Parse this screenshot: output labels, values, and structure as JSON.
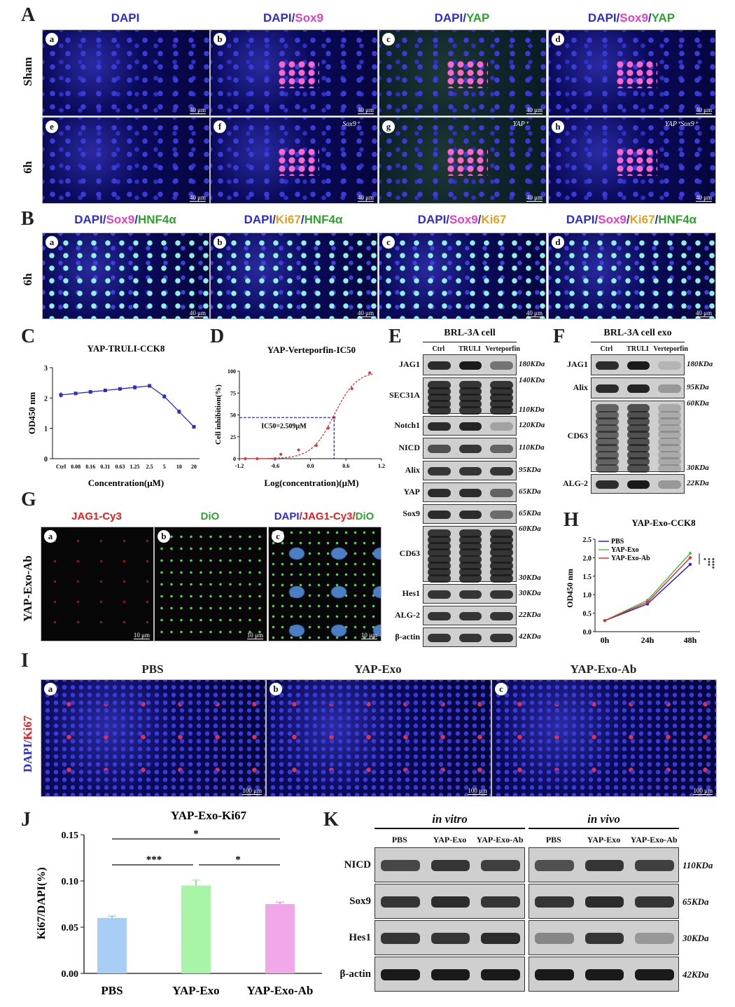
{
  "panels": {
    "A": "A",
    "B": "B",
    "C": "C",
    "D": "D",
    "E": "E",
    "F": "F",
    "G": "G",
    "H": "H",
    "I": "I",
    "J": "J",
    "K": "K"
  },
  "A": {
    "cols": [
      {
        "parts": [
          {
            "t": "DAPI",
            "c": "#2c2cd0"
          }
        ]
      },
      {
        "parts": [
          {
            "t": "DAPI",
            "c": "#2c2cd0"
          },
          {
            "t": "/",
            "c": "#2c2cd0"
          },
          {
            "t": "Sox9",
            "c": "#e040c0"
          }
        ]
      },
      {
        "parts": [
          {
            "t": "DAPI",
            "c": "#2c2cd0"
          },
          {
            "t": "/",
            "c": "#2c2cd0"
          },
          {
            "t": "YAP",
            "c": "#30a030"
          }
        ]
      },
      {
        "parts": [
          {
            "t": "DAPI",
            "c": "#2c2cd0"
          },
          {
            "t": "/",
            "c": "#2c2cd0"
          },
          {
            "t": "Sox9",
            "c": "#e040c0"
          },
          {
            "t": "/",
            "c": "#2c2cd0"
          },
          {
            "t": "YAP",
            "c": "#30a030"
          }
        ]
      }
    ],
    "rows": [
      "Sham",
      "6h"
    ],
    "letters": [
      [
        "a",
        "b",
        "c",
        "d"
      ],
      [
        "e",
        "f",
        "g",
        "h"
      ]
    ],
    "scale": "40 μm",
    "annotations": {
      "f": "Sox9⁺",
      "g": "YAP⁺",
      "h": "YAP⁺Sox9⁺"
    }
  },
  "B": {
    "cols": [
      {
        "parts": [
          {
            "t": "DAPI",
            "c": "#2c2cd0"
          },
          {
            "t": "/",
            "c": "#2c2cd0"
          },
          {
            "t": "Sox9",
            "c": "#e040c0"
          },
          {
            "t": "/",
            "c": "#2c2cd0"
          },
          {
            "t": "HNF4α",
            "c": "#30a030"
          }
        ]
      },
      {
        "parts": [
          {
            "t": "DAPI",
            "c": "#2c2cd0"
          },
          {
            "t": "/",
            "c": "#2c2cd0"
          },
          {
            "t": "Ki67",
            "c": "#e0a020"
          },
          {
            "t": "/",
            "c": "#2c2cd0"
          },
          {
            "t": "HNF4α",
            "c": "#30a030"
          }
        ]
      },
      {
        "parts": [
          {
            "t": "DAPI",
            "c": "#2c2cd0"
          },
          {
            "t": "/",
            "c": "#2c2cd0"
          },
          {
            "t": "Sox9",
            "c": "#e040c0"
          },
          {
            "t": "/",
            "c": "#2c2cd0"
          },
          {
            "t": "Ki67",
            "c": "#e0a020"
          }
        ]
      },
      {
        "parts": [
          {
            "t": "DAPI",
            "c": "#2c2cd0"
          },
          {
            "t": "/",
            "c": "#2c2cd0"
          },
          {
            "t": "Sox9",
            "c": "#e040c0"
          },
          {
            "t": "/",
            "c": "#2c2cd0"
          },
          {
            "t": "Ki67",
            "c": "#e0a020"
          },
          {
            "t": "/",
            "c": "#2c2cd0"
          },
          {
            "t": "HNF4α",
            "c": "#30a030"
          }
        ]
      }
    ],
    "row": "6h",
    "letters": [
      "a",
      "b",
      "c",
      "d"
    ],
    "scale": "40 μm"
  },
  "chart_data": [
    {
      "id": "C",
      "type": "line",
      "title": "YAP-TRULI-CCK8",
      "xlabel": "Concentration(μM)",
      "ylabel": "OD450 nm",
      "categories": [
        "Ctrl",
        "0.08",
        "0.16",
        "0.31",
        "0.63",
        "1.25",
        "2.5",
        "5",
        "10",
        "20"
      ],
      "values": [
        2.1,
        2.15,
        2.2,
        2.25,
        2.3,
        2.35,
        2.4,
        2.05,
        1.55,
        1.05
      ],
      "errors": [
        0.08,
        0.05,
        0.06,
        0.05,
        0.05,
        0.07,
        0.06,
        0.07,
        0.07,
        0.03
      ],
      "ylim": [
        0,
        3
      ],
      "yticks": [
        "0",
        "1",
        "2",
        "3"
      ]
    },
    {
      "id": "D",
      "type": "scatter",
      "title": "YAP-Verteporfin-IC50",
      "xlabel": "Log(concentration)(μM)",
      "ylabel": "Cell inhibition(%)",
      "x": [
        -1.1,
        -0.9,
        -0.6,
        -0.5,
        -0.2,
        0.1,
        0.3,
        0.4,
        0.7,
        1.0
      ],
      "y": [
        0,
        0,
        0,
        5,
        10,
        15,
        35,
        47,
        80,
        98
      ],
      "xlim": [
        -1.2,
        1.2
      ],
      "ylim": [
        0,
        100
      ],
      "xticks": [
        "-1.2",
        "-0.6",
        "0.0",
        "0.6",
        "1.2"
      ],
      "yticks": [
        "0",
        "25",
        "50",
        "75",
        "100"
      ],
      "annotation": "IC50=2.509μM",
      "ic50_log": 0.4,
      "ic50_y": 47
    },
    {
      "id": "H",
      "type": "line",
      "title": "YAP-Exo-CCK8",
      "ylabel": "OD450 nm",
      "categories": [
        "0h",
        "24h",
        "48h"
      ],
      "series": [
        {
          "name": "PBS",
          "color": "#2020e0",
          "values": [
            0.3,
            0.75,
            1.82
          ]
        },
        {
          "name": "YAP-Exo",
          "color": "#50c050",
          "values": [
            0.3,
            0.85,
            2.12
          ]
        },
        {
          "name": "YAP-Exo-Ab",
          "color": "#e03030",
          "values": [
            0.3,
            0.8,
            2.0
          ]
        }
      ],
      "ylim": [
        0,
        2.5
      ],
      "yticks": [
        "0.0",
        "0.5",
        "1.0",
        "1.5",
        "2.0",
        "2.5"
      ],
      "sig": [
        "*",
        "***",
        "****"
      ]
    },
    {
      "id": "J",
      "type": "bar",
      "title": "YAP-Exo-Ki67",
      "ylabel": "Ki67/DAPI(%)",
      "categories": [
        "PBS",
        "YAP-Exo",
        "YAP-Exo-Ab"
      ],
      "values": [
        0.06,
        0.095,
        0.075
      ],
      "errors": [
        0.002,
        0.006,
        0.002
      ],
      "colors": [
        "#a8cef5",
        "#a8f5a8",
        "#f0a8e8"
      ],
      "ylim": [
        0,
        0.15
      ],
      "yticks": [
        "0.00",
        "0.05",
        "0.10",
        "0.15"
      ],
      "sig": [
        "*",
        "***",
        "*"
      ]
    }
  ],
  "E": {
    "title": "BRL-3A cell",
    "lanes": [
      "Ctrl",
      "TRULI",
      "Verteporfin"
    ],
    "rows": [
      {
        "label": "JAG1",
        "kda": [
          "180KDa"
        ]
      },
      {
        "label": "SEC31A",
        "kda": [
          "140KDa",
          "110KDa"
        ]
      },
      {
        "label": "Notch1",
        "kda": [
          "120KDa"
        ]
      },
      {
        "label": "NICD",
        "kda": [
          "110KDa"
        ]
      },
      {
        "label": "Alix",
        "kda": [
          "95KDa"
        ]
      },
      {
        "label": "YAP",
        "kda": [
          "65KDa"
        ]
      },
      {
        "label": "Sox9",
        "kda": [
          "65KDa"
        ]
      },
      {
        "label": "CD63",
        "kda": [
          "60KDa",
          "30KDa"
        ]
      },
      {
        "label": "Hes1",
        "kda": [
          "30KDa"
        ]
      },
      {
        "label": "ALG-2",
        "kda": [
          "22KDa"
        ]
      },
      {
        "label": "β-actin",
        "kda": [
          "42KDa"
        ]
      }
    ]
  },
  "F": {
    "title": "BRL-3A cell exo",
    "lanes": [
      "Ctrl",
      "TRULI",
      "Verteporfin"
    ],
    "rows": [
      {
        "label": "JAG1",
        "kda": [
          "180KDa"
        ]
      },
      {
        "label": "Alix",
        "kda": [
          "95KDa"
        ]
      },
      {
        "label": "CD63",
        "kda": [
          "60KDa",
          "30KDa"
        ]
      },
      {
        "label": "ALG-2",
        "kda": [
          "22KDa"
        ]
      }
    ]
  },
  "G": {
    "cols": [
      {
        "parts": [
          {
            "t": "JAG1-Cy3",
            "c": "#e02020"
          }
        ]
      },
      {
        "parts": [
          {
            "t": "DiO",
            "c": "#30a030"
          }
        ]
      },
      {
        "parts": [
          {
            "t": "DAPI",
            "c": "#2c2cd0"
          },
          {
            "t": "/",
            "c": "#e02020"
          },
          {
            "t": "JAG1-Cy3",
            "c": "#e02020"
          },
          {
            "t": "/",
            "c": "#e02020"
          },
          {
            "t": "DiO",
            "c": "#30a030"
          }
        ]
      }
    ],
    "row": "YAP-Exo-Ab",
    "letters": [
      "a",
      "b",
      "c"
    ],
    "scale": "10 μm"
  },
  "I": {
    "cols": [
      "PBS",
      "YAP-Exo",
      "YAP-Exo-Ab"
    ],
    "row_parts": [
      {
        "t": "DAPI",
        "c": "#2c2cd0"
      },
      {
        "t": "/",
        "c": "#2c2cd0"
      },
      {
        "t": "Ki67",
        "c": "#e02020"
      }
    ],
    "letters": [
      "a",
      "b",
      "c"
    ],
    "scale": "100 μm"
  },
  "K": {
    "groups": [
      "in vitro",
      "in vivo"
    ],
    "lanes": [
      "PBS",
      "YAP-Exo",
      "YAP-Exo-Ab"
    ],
    "rows": [
      {
        "label": "NICD",
        "kda": "110KDa"
      },
      {
        "label": "Sox9",
        "kda": "65KDa"
      },
      {
        "label": "Hes1",
        "kda": "30KDa"
      },
      {
        "label": "β-actin",
        "kda": "42KDa"
      }
    ]
  }
}
